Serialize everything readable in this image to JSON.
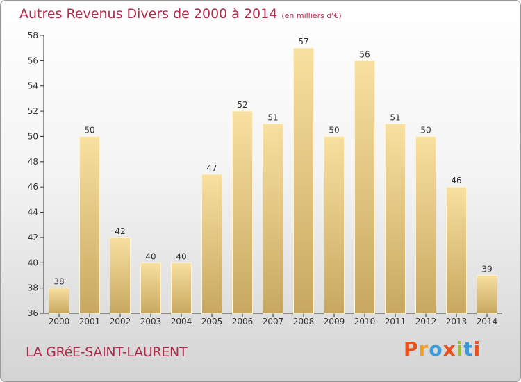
{
  "header": {
    "title": "Autres Revenus Divers de 2000 à 2014",
    "subtitle": "(en milliers d'€)"
  },
  "footer": {
    "commune": "LA GRéE-SAINT-LAURENT",
    "brand": "Proxiti"
  },
  "colors": {
    "title": "#b02a4a",
    "bar_top": "#f8e0a0",
    "bar_bottom": "#c8a860",
    "brand": [
      "#e8501e",
      "#f0a020",
      "#3a9ad8",
      "#e8501e",
      "#9ac030",
      "#3a9ad8",
      "#e8501e"
    ]
  },
  "chart_data": {
    "type": "bar",
    "categories": [
      "2000",
      "2001",
      "2002",
      "2003",
      "2004",
      "2005",
      "2006",
      "2007",
      "2008",
      "2009",
      "2010",
      "2011",
      "2012",
      "2013",
      "2014"
    ],
    "values": [
      38,
      50,
      42,
      40,
      40,
      47,
      52,
      51,
      57,
      50,
      56,
      51,
      50,
      46,
      39
    ],
    "title": "Autres Revenus Divers de 2000 à 2014",
    "ylim": [
      36,
      58
    ],
    "yticks": [
      36,
      38,
      40,
      42,
      44,
      46,
      48,
      50,
      52,
      54,
      56,
      58
    ],
    "grid": false,
    "data_labels": true
  }
}
